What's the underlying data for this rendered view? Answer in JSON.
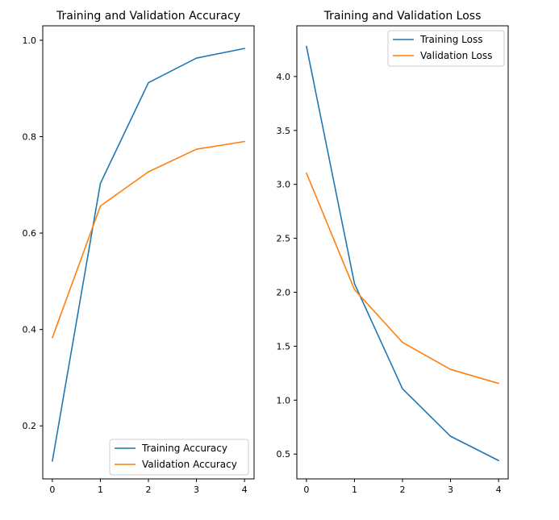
{
  "chart_data": [
    {
      "type": "line",
      "title": "Training and Validation Accuracy",
      "xlabel": "",
      "ylabel": "",
      "x": [
        0,
        1,
        2,
        3,
        4
      ],
      "xticks": [
        0,
        1,
        2,
        3,
        4
      ],
      "yticks": [
        0.2,
        0.4,
        0.6,
        0.8,
        1.0
      ],
      "ytick_labels": [
        "0.2",
        "0.4",
        "0.6",
        "0.8",
        "1.0"
      ],
      "xlim": [
        -0.2,
        4.2
      ],
      "ylim": [
        0.09,
        1.03
      ],
      "grid": false,
      "legend_position": "bottom-right",
      "series": [
        {
          "name": "Training Accuracy",
          "color": "#1f77b4",
          "values": [
            0.127,
            0.703,
            0.912,
            0.963,
            0.983
          ]
        },
        {
          "name": "Validation Accuracy",
          "color": "#ff7f0e",
          "values": [
            0.383,
            0.656,
            0.727,
            0.774,
            0.79
          ]
        }
      ]
    },
    {
      "type": "line",
      "title": "Training and Validation Loss",
      "xlabel": "",
      "ylabel": "",
      "x": [
        0,
        1,
        2,
        3,
        4
      ],
      "xticks": [
        0,
        1,
        2,
        3,
        4
      ],
      "yticks": [
        0.5,
        1.0,
        1.5,
        2.0,
        2.5,
        3.0,
        3.5,
        4.0
      ],
      "ytick_labels": [
        "0.5",
        "1.0",
        "1.5",
        "2.0",
        "2.5",
        "3.0",
        "3.5",
        "4.0"
      ],
      "xlim": [
        -0.2,
        4.2
      ],
      "ylim": [
        0.27,
        4.47
      ],
      "grid": false,
      "legend_position": "top-right",
      "series": [
        {
          "name": "Training Loss",
          "color": "#1f77b4",
          "values": [
            4.28,
            2.08,
            1.105,
            0.665,
            0.44
          ]
        },
        {
          "name": "Validation Loss",
          "color": "#ff7f0e",
          "values": [
            3.105,
            2.025,
            1.535,
            1.285,
            1.155
          ]
        }
      ]
    }
  ]
}
